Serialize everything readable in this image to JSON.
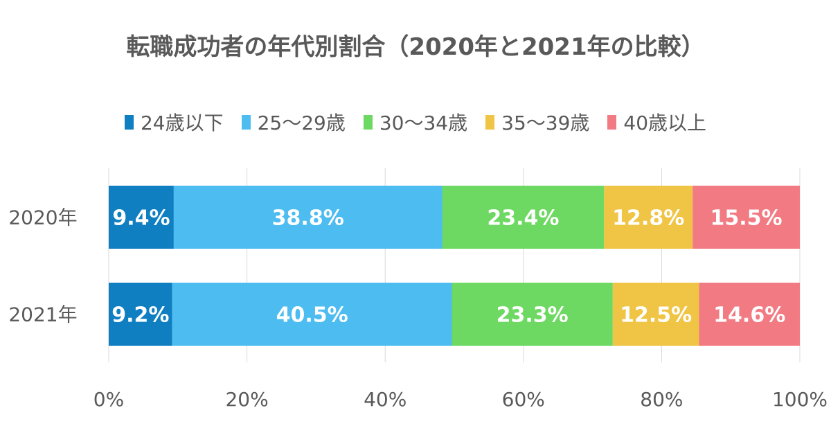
{
  "chart_data": {
    "type": "bar",
    "orientation": "horizontal",
    "stacked": true,
    "title": "転職成功者の年代別割合（2020年と2021年の比較）",
    "categories": [
      "2020年",
      "2021年"
    ],
    "series": [
      {
        "name": "24歳以下",
        "color": "#0f7fc2",
        "values": [
          9.4,
          9.2
        ],
        "labels": [
          "9.4%",
          "9.2%"
        ]
      },
      {
        "name": "25〜29歳",
        "color": "#4dbcf0",
        "values": [
          38.8,
          40.5
        ],
        "labels": [
          "38.8%",
          "40.5%"
        ]
      },
      {
        "name": "30〜34歳",
        "color": "#6dd862",
        "values": [
          23.4,
          23.3
        ],
        "labels": [
          "23.4%",
          "23.3%"
        ]
      },
      {
        "name": "35〜39歳",
        "color": "#f0c444",
        "values": [
          12.8,
          12.5
        ],
        "labels": [
          "12.8%",
          "12.5%"
        ]
      },
      {
        "name": "40歳以上",
        "color": "#f27b83",
        "values": [
          15.5,
          14.6
        ],
        "labels": [
          "15.5%",
          "14.6%"
        ]
      }
    ],
    "xlim": [
      0,
      100
    ],
    "xticks": [
      "0%",
      "20%",
      "40%",
      "60%",
      "80%",
      "100%"
    ],
    "grid": true,
    "legend_position": "top"
  }
}
